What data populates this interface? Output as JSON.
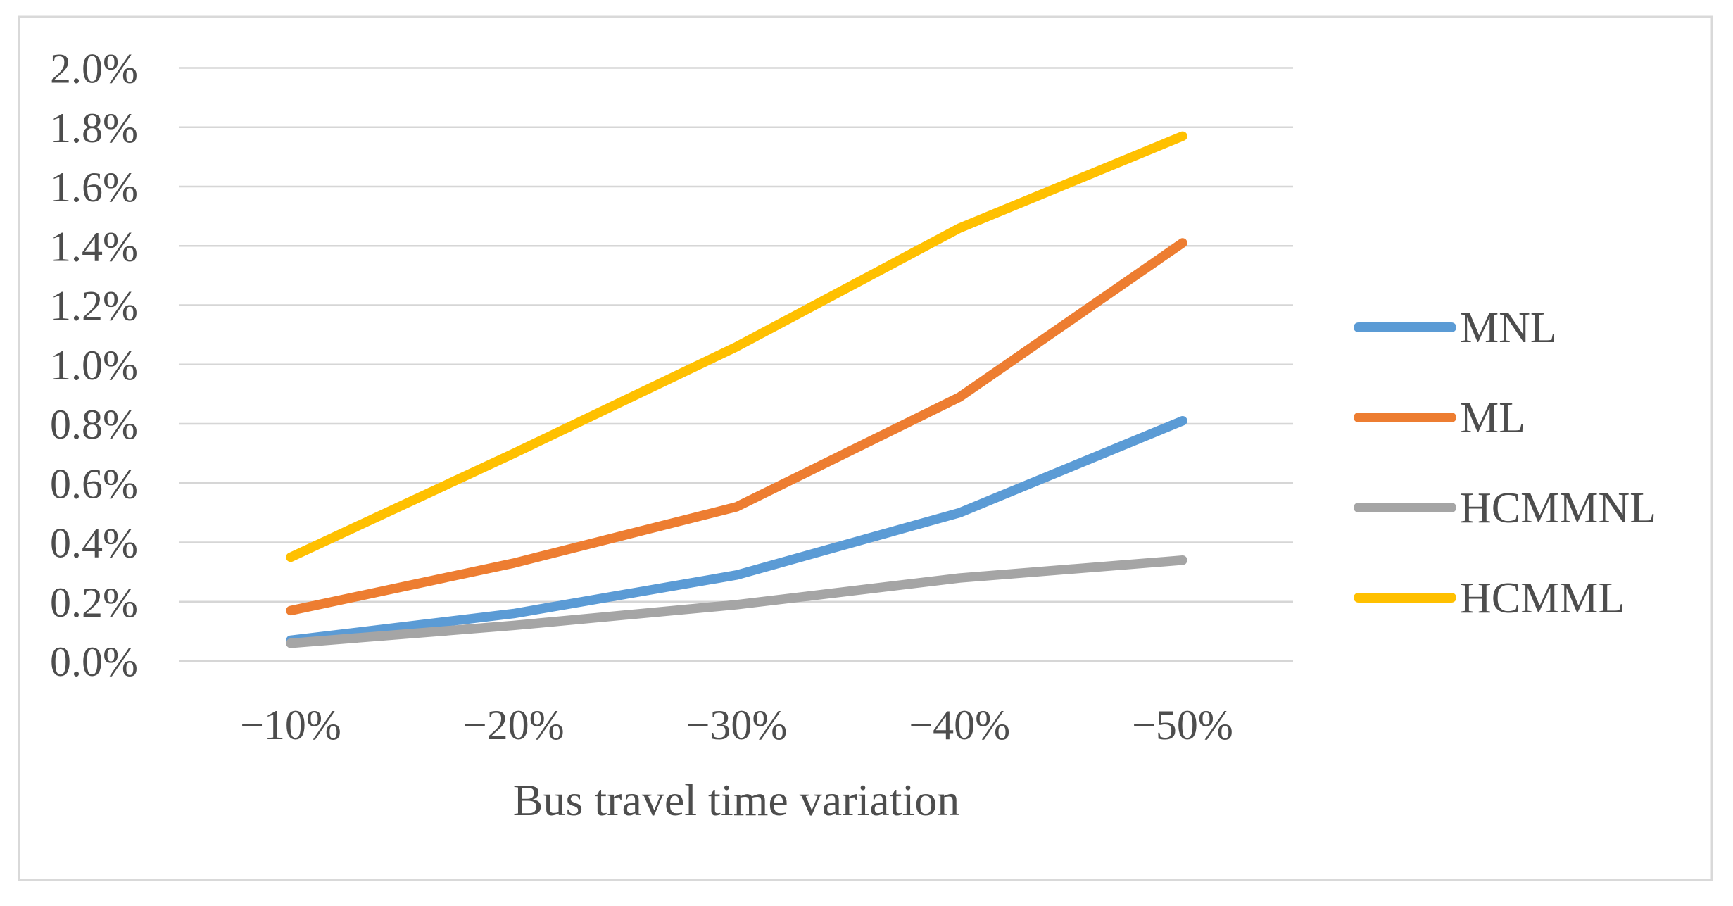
{
  "figure": {
    "background_color": "#ffffff",
    "border_color": "#d9d9d9"
  },
  "chart_data": {
    "type": "line",
    "title": "",
    "xlabel": "Bus travel time variation",
    "ylabel": "",
    "categories": [
      "−10%",
      "−20%",
      "−30%",
      "−40%",
      "−50%"
    ],
    "series": [
      {
        "name": "MNL",
        "color": "#5B9BD5",
        "values": [
          0.07,
          0.16,
          0.29,
          0.5,
          0.81
        ]
      },
      {
        "name": "ML",
        "color": "#ED7D31",
        "values": [
          0.17,
          0.33,
          0.52,
          0.89,
          1.41
        ]
      },
      {
        "name": "HCMMNL",
        "color": "#A5A5A5",
        "values": [
          0.06,
          0.12,
          0.19,
          0.28,
          0.34
        ]
      },
      {
        "name": "HCMML",
        "color": "#FFC000",
        "values": [
          0.35,
          0.7,
          1.06,
          1.46,
          1.77
        ]
      }
    ],
    "y_ticks": [
      "0.0%",
      "0.2%",
      "0.4%",
      "0.6%",
      "0.8%",
      "1.0%",
      "1.2%",
      "1.4%",
      "1.6%",
      "1.8%",
      "2.0%"
    ],
    "y_axis": {
      "min": 0.0,
      "max": 2.0,
      "step": 0.2,
      "unit": "%"
    },
    "grid": true,
    "gridline_color": "#d6d6d6",
    "text_color": "#4d4d4d",
    "legend_position": "right"
  }
}
